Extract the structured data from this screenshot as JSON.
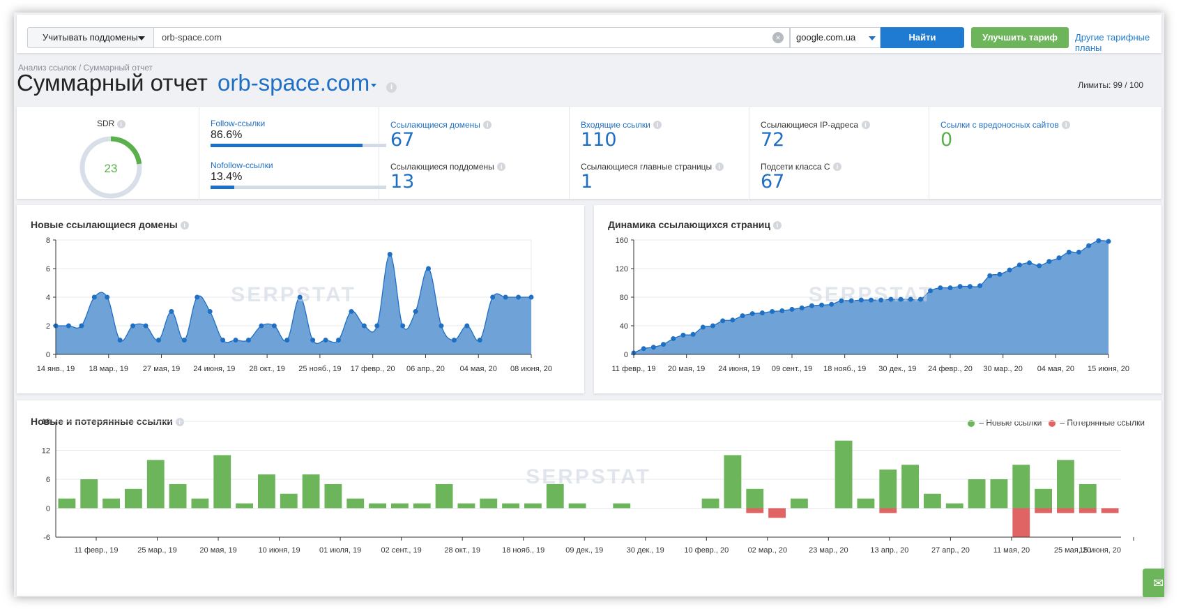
{
  "search": {
    "subdomains_label": "Учитывать поддомены",
    "query": "orb-space.com",
    "database": "google.com.ua",
    "find_label": "Найти",
    "upgrade_label": "Улучшить тариф",
    "plans_link": "Другие тарифные планы"
  },
  "breadcrumb": {
    "section": "Анализ ссылок",
    "separator": " / ",
    "page": "Суммарный отчет"
  },
  "header": {
    "title": "Суммарный отчет",
    "domain": "orb-space.com",
    "limits": "Лимиты: 99 / 100"
  },
  "metrics": {
    "sdr_label": "SDR",
    "sdr_value": "23",
    "sdr_fraction": 0.23,
    "follow_label": "Follow-ссылки",
    "follow_value": "86.6%",
    "follow_fraction": 0.866,
    "nofollow_label": "Nofollow-ссылки",
    "nofollow_value": "13.4%",
    "nofollow_fraction": 0.134,
    "ref_domains_label": "Ссылающиеся домены",
    "ref_domains_value": "67",
    "ref_subdomains_label": "Ссылающиеся поддомены",
    "ref_subdomains_value": "13",
    "inbound_label": "Входящие ссылки",
    "inbound_value": "110",
    "main_pages_label": "Ссылающиеся главные страницы",
    "main_pages_value": "1",
    "ips_label": "Ссылающиеся IP-адреса",
    "ips_value": "72",
    "subnets_label": "Подсети класса С",
    "subnets_value": "67",
    "malicious_label": "Ссылки с вредоносных сайтов",
    "malicious_value": "0"
  },
  "charts": {
    "domains_title": "Новые ссылающиеся домены",
    "pages_title": "Динамика ссылающихся страниц",
    "links_title": "Новые и потерянные ссылки",
    "legend_new": " – Новые ссылки",
    "legend_lost": " – Потерянные ссылки",
    "watermark": "SERPSTAT"
  },
  "colors": {
    "accent": "#1f6fc4",
    "area": "#6fa3d8",
    "new": "#6cb55a",
    "lost": "#e06464"
  },
  "chart_data": [
    {
      "id": "new_domains",
      "type": "area",
      "title": "Новые ссылающиеся домены",
      "ylim": [
        0,
        8
      ],
      "yticks": [
        0,
        2,
        4,
        6,
        8
      ],
      "xticks": [
        "14 янв., 19",
        "18 мар., 19",
        "27 мая, 19",
        "24 июня, 19",
        "28 окт., 19",
        "25 нояб., 19",
        "17 февр., 20",
        "06 апр., 20",
        "04 мая, 20",
        "08 июня, 20"
      ],
      "values": [
        2,
        2,
        2,
        4,
        4,
        1,
        2,
        2,
        1,
        3,
        1,
        4,
        3,
        1,
        1,
        1,
        2,
        2,
        1,
        4,
        1,
        1,
        1,
        3,
        2,
        2,
        7,
        2,
        3,
        6,
        2,
        1,
        2,
        1,
        4,
        4,
        4,
        4
      ]
    },
    {
      "id": "pages_dynamics",
      "type": "area",
      "title": "Динамика ссылающихся страниц",
      "ylim": [
        0,
        160
      ],
      "yticks": [
        0,
        40,
        80,
        120,
        160
      ],
      "xticks": [
        "11 февр., 19",
        "20 мая, 19",
        "24 июня, 19",
        "09 сент., 19",
        "18 нояб., 19",
        "30 дек., 19",
        "24 февр., 20",
        "30 мар., 20",
        "04 мая, 20",
        "15 июня, 20"
      ],
      "values": [
        2,
        8,
        10,
        14,
        22,
        27,
        28,
        38,
        40,
        47,
        48,
        54,
        57,
        58,
        60,
        61,
        63,
        65,
        68,
        69,
        70,
        75,
        75,
        76,
        76,
        76,
        77,
        77,
        77,
        77,
        89,
        93,
        93,
        95,
        95,
        96,
        110,
        112,
        118,
        125,
        128,
        124,
        130,
        135,
        143,
        143,
        152,
        159,
        158
      ]
    },
    {
      "id": "new_lost_links",
      "type": "bar",
      "title": "Новые и потерянные ссылки",
      "ylim": [
        -6,
        18
      ],
      "yticks": [
        -6,
        0,
        6,
        12,
        18
      ],
      "xticks": [
        "11 февр., 19",
        "25 мар., 19",
        "20 мая, 19",
        "10 июня, 19",
        "01 июля, 19",
        "02 сент., 19",
        "28 окт., 19",
        "18 нояб., 19",
        "09 дек., 19",
        "30 дек., 19",
        "10 февр., 20",
        "02 мар., 20",
        "23 мар., 20",
        "13 апр., 20",
        "27 апр., 20",
        "11 мая, 20",
        "25 мая, 20",
        "15 июня, 20"
      ],
      "series": [
        {
          "name": "Новые ссылки",
          "values": [
            2,
            6,
            2,
            4,
            10,
            5,
            2,
            11,
            1,
            7,
            3,
            7,
            5,
            2,
            1,
            1,
            1,
            5,
            1,
            2,
            1,
            1,
            5,
            1,
            0,
            1,
            0,
            0,
            0,
            2,
            11,
            4,
            0,
            2,
            0,
            14,
            2,
            8,
            9,
            3,
            1,
            6,
            6,
            9,
            4,
            10,
            5,
            0
          ]
        },
        {
          "name": "Потерянные ссылки",
          "values": [
            0,
            0,
            0,
            0,
            0,
            0,
            0,
            0,
            0,
            0,
            0,
            0,
            0,
            0,
            0,
            0,
            0,
            0,
            0,
            0,
            0,
            0,
            0,
            0,
            0,
            0,
            0,
            0,
            0,
            0,
            0,
            -1,
            -2,
            0,
            0,
            0,
            0,
            -1,
            0,
            0,
            0,
            0,
            0,
            -6,
            -1,
            -1,
            -1,
            -1
          ]
        }
      ]
    }
  ]
}
